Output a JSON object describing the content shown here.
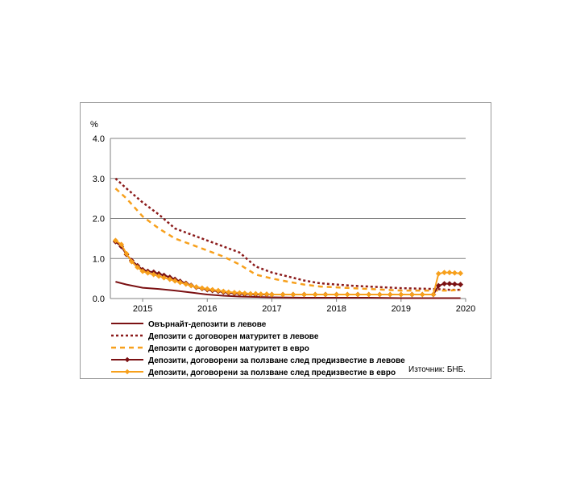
{
  "chart_data": {
    "type": "line",
    "unit_label": "%",
    "x_tick_labels": [
      "2015",
      "2016",
      "2017",
      "2018",
      "2019",
      "2020"
    ],
    "y_tick_labels": [
      "0.0",
      "1.0",
      "2.0",
      "3.0",
      "4.0"
    ],
    "ylim": [
      0,
      4
    ],
    "xlim": [
      2014.5,
      2020.0
    ],
    "grid": "horizontal",
    "legend_position": "bottom",
    "source": "Източник: БНБ.",
    "series": [
      {
        "name": "Овърнайт-депозити в левове",
        "color": "#7b1113",
        "style": "solid",
        "marker": "none",
        "x": [
          2014.58,
          2014.75,
          2015.0,
          2015.25,
          2015.5,
          2015.75,
          2016.0,
          2016.25,
          2016.5,
          2016.75,
          2017.0,
          2017.5,
          2018.0,
          2018.5,
          2019.0,
          2019.5,
          2019.92
        ],
        "y": [
          0.42,
          0.35,
          0.27,
          0.24,
          0.2,
          0.15,
          0.1,
          0.07,
          0.05,
          0.04,
          0.03,
          0.02,
          0.02,
          0.02,
          0.01,
          0.01,
          0.01
        ]
      },
      {
        "name": "Депозити с договорен матуритет в левове",
        "color": "#8b1a1a",
        "style": "dotted",
        "marker": "none",
        "x": [
          2014.58,
          2014.75,
          2015.0,
          2015.25,
          2015.5,
          2015.75,
          2016.0,
          2016.25,
          2016.5,
          2016.75,
          2017.0,
          2017.25,
          2017.5,
          2017.75,
          2018.0,
          2018.25,
          2018.5,
          2018.75,
          2019.0,
          2019.25,
          2019.5,
          2019.75,
          2019.92
        ],
        "y": [
          3.0,
          2.75,
          2.4,
          2.1,
          1.75,
          1.6,
          1.45,
          1.3,
          1.15,
          0.8,
          0.65,
          0.55,
          0.45,
          0.38,
          0.35,
          0.32,
          0.3,
          0.28,
          0.26,
          0.25,
          0.24,
          0.22,
          0.22
        ]
      },
      {
        "name": "Депозити с договорен матуритет в евро",
        "color": "#f7a01c",
        "style": "dashed",
        "marker": "none",
        "x": [
          2014.58,
          2014.75,
          2015.0,
          2015.25,
          2015.5,
          2015.75,
          2016.0,
          2016.25,
          2016.5,
          2016.75,
          2017.0,
          2017.25,
          2017.5,
          2017.75,
          2018.0,
          2018.25,
          2018.5,
          2018.75,
          2019.0,
          2019.25,
          2019.5,
          2019.75,
          2019.92
        ],
        "y": [
          2.75,
          2.5,
          2.05,
          1.75,
          1.5,
          1.35,
          1.2,
          1.05,
          0.85,
          0.6,
          0.5,
          0.42,
          0.35,
          0.3,
          0.28,
          0.26,
          0.24,
          0.22,
          0.2,
          0.2,
          0.2,
          0.2,
          0.22
        ]
      },
      {
        "name": "Депозити, договорени за ползване след предизвестие в левове",
        "color": "#7b1113",
        "style": "solid",
        "marker": "diamond",
        "x": [
          2014.58,
          2014.67,
          2014.75,
          2014.83,
          2014.92,
          2015.0,
          2015.08,
          2015.17,
          2015.25,
          2015.33,
          2015.42,
          2015.5,
          2015.58,
          2015.67,
          2015.75,
          2015.83,
          2015.92,
          2016.0,
          2016.08,
          2016.17,
          2016.25,
          2016.33,
          2016.42,
          2016.5,
          2016.58,
          2016.67,
          2016.75,
          2016.83,
          2016.92,
          2017.0,
          2017.17,
          2017.33,
          2017.5,
          2017.67,
          2017.83,
          2018.0,
          2018.17,
          2018.33,
          2018.5,
          2018.67,
          2018.83,
          2019.0,
          2019.17,
          2019.33,
          2019.5,
          2019.58,
          2019.67,
          2019.75,
          2019.83,
          2019.92
        ],
        "y": [
          1.42,
          1.3,
          1.1,
          0.95,
          0.82,
          0.72,
          0.68,
          0.66,
          0.62,
          0.58,
          0.53,
          0.48,
          0.43,
          0.38,
          0.33,
          0.28,
          0.25,
          0.22,
          0.2,
          0.18,
          0.16,
          0.14,
          0.13,
          0.12,
          0.11,
          0.11,
          0.1,
          0.1,
          0.1,
          0.1,
          0.1,
          0.1,
          0.1,
          0.1,
          0.1,
          0.1,
          0.1,
          0.1,
          0.1,
          0.1,
          0.1,
          0.1,
          0.1,
          0.1,
          0.1,
          0.32,
          0.37,
          0.37,
          0.36,
          0.35
        ]
      },
      {
        "name": "Депозити, договорени за ползване след предизвестие в евро",
        "color": "#f7a01c",
        "style": "solid",
        "marker": "diamond",
        "x": [
          2014.58,
          2014.67,
          2014.75,
          2014.83,
          2014.92,
          2015.0,
          2015.08,
          2015.17,
          2015.25,
          2015.33,
          2015.42,
          2015.5,
          2015.58,
          2015.67,
          2015.75,
          2015.83,
          2015.92,
          2016.0,
          2016.08,
          2016.17,
          2016.25,
          2016.33,
          2016.42,
          2016.5,
          2016.58,
          2016.67,
          2016.75,
          2016.83,
          2016.92,
          2017.0,
          2017.17,
          2017.33,
          2017.5,
          2017.67,
          2017.83,
          2018.0,
          2018.17,
          2018.33,
          2018.5,
          2018.67,
          2018.83,
          2019.0,
          2019.17,
          2019.33,
          2019.5,
          2019.58,
          2019.67,
          2019.75,
          2019.83,
          2019.92
        ],
        "y": [
          1.45,
          1.35,
          1.12,
          0.92,
          0.78,
          0.68,
          0.64,
          0.6,
          0.56,
          0.52,
          0.48,
          0.44,
          0.4,
          0.36,
          0.32,
          0.29,
          0.26,
          0.24,
          0.22,
          0.2,
          0.18,
          0.16,
          0.15,
          0.14,
          0.13,
          0.12,
          0.12,
          0.11,
          0.11,
          0.1,
          0.1,
          0.1,
          0.1,
          0.1,
          0.1,
          0.1,
          0.1,
          0.1,
          0.1,
          0.1,
          0.1,
          0.1,
          0.1,
          0.1,
          0.1,
          0.62,
          0.65,
          0.65,
          0.64,
          0.63
        ]
      }
    ]
  }
}
